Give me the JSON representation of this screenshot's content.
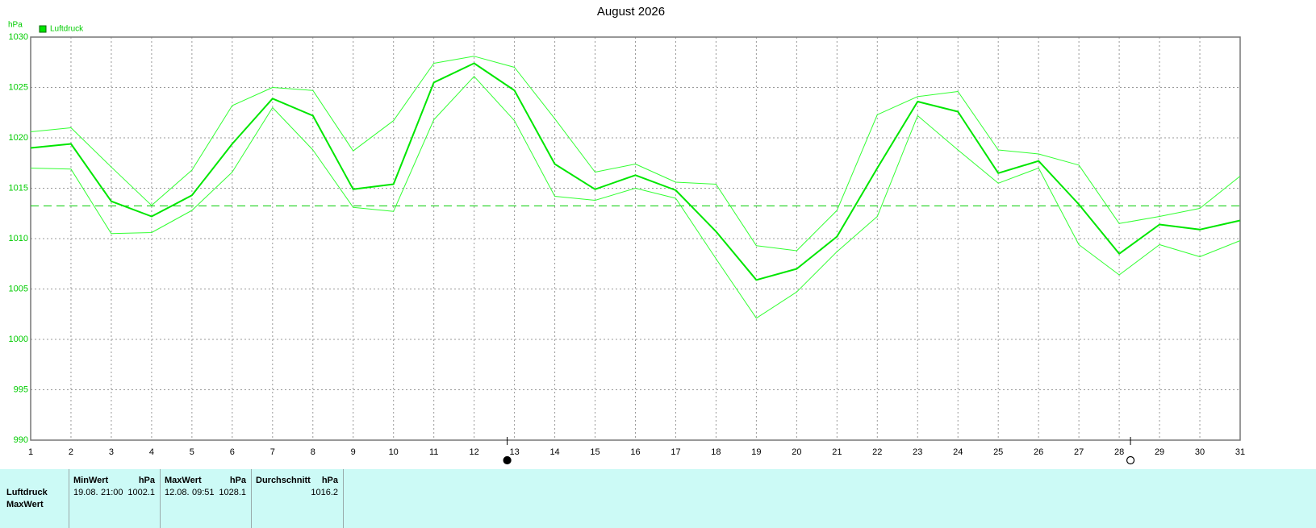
{
  "chart_data": {
    "type": "line",
    "title": "August 2026",
    "y_unit": "hPa",
    "x": [
      1,
      2,
      3,
      4,
      5,
      6,
      7,
      8,
      9,
      10,
      11,
      12,
      13,
      14,
      15,
      16,
      17,
      18,
      19,
      20,
      21,
      22,
      23,
      24,
      25,
      26,
      27,
      28,
      29,
      30,
      31
    ],
    "xlim": [
      1,
      31
    ],
    "xticks": [
      1,
      2,
      3,
      4,
      5,
      6,
      7,
      8,
      9,
      10,
      11,
      12,
      13,
      14,
      15,
      16,
      17,
      18,
      19,
      20,
      21,
      22,
      23,
      24,
      25,
      26,
      27,
      28,
      29,
      30,
      31
    ],
    "ylim": [
      990,
      1030
    ],
    "yticks": [
      990,
      995,
      1000,
      1005,
      1010,
      1015,
      1020,
      1025,
      1030
    ],
    "grid": true,
    "legend": "top-left",
    "series": [
      {
        "name": "Luftdruck",
        "color": "#00e600",
        "line_width": 2,
        "values": [
          1019.0,
          1019.4,
          1013.7,
          1012.2,
          1014.3,
          1019.4,
          1023.9,
          1022.2,
          1014.9,
          1015.4,
          1025.5,
          1027.4,
          1024.7,
          1017.4,
          1014.9,
          1016.3,
          1014.8,
          1010.7,
          1005.9,
          1007.0,
          1010.2,
          1017.0,
          1023.6,
          1022.6,
          1016.5,
          1017.7,
          1013.4,
          1008.5,
          1011.4,
          1010.9,
          1011.8
        ]
      },
      {
        "color": "#33ff33",
        "line_width": 1,
        "values": [
          1020.6,
          1021.0,
          1017.1,
          1013.3,
          1016.8,
          1023.2,
          1025.0,
          1024.7,
          1018.7,
          1021.7,
          1027.4,
          1028.1,
          1027.0,
          1021.9,
          1016.6,
          1017.4,
          1015.6,
          1015.4,
          1009.3,
          1008.8,
          1012.8,
          1022.3,
          1024.1,
          1024.6,
          1018.8,
          1018.4,
          1017.3,
          1011.5,
          1012.2,
          1013.0,
          1016.2
        ]
      },
      {
        "color": "#33ff33",
        "line_width": 1,
        "values": [
          1017.0,
          1016.9,
          1010.5,
          1010.6,
          1012.8,
          1016.6,
          1023.0,
          1018.8,
          1013.1,
          1012.7,
          1021.8,
          1026.1,
          1021.7,
          1014.2,
          1013.8,
          1015.0,
          1014.0,
          1008.0,
          1002.1,
          1004.7,
          1008.7,
          1012.2,
          1022.2,
          1018.8,
          1015.5,
          1017.0,
          1009.4,
          1006.4,
          1009.4,
          1008.2,
          1009.8
        ]
      }
    ],
    "reference_line": {
      "value": 1013.25,
      "color": "#00cc00"
    },
    "markers": [
      {
        "x": 12.82,
        "filled": true
      },
      {
        "x": 28.28,
        "filled": false
      }
    ]
  },
  "stats_table": {
    "columns": [
      {
        "label": "MinWert",
        "unit": "hPa"
      },
      {
        "label": "MaxWert",
        "unit": "hPa"
      },
      {
        "label": "Durchschnitt",
        "unit": "hPa"
      }
    ],
    "rows": [
      {
        "label": "Luftdruck",
        "cells": [
          [
            "19.08.",
            "21:00",
            "1002.1"
          ],
          [
            "12.08.",
            "09:51",
            "1028.1"
          ],
          [
            "1016.2"
          ]
        ]
      },
      {
        "label": "MaxWert"
      }
    ]
  }
}
